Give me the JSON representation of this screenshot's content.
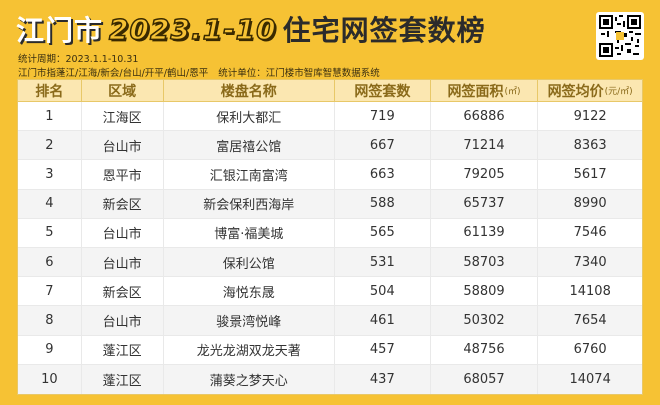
{
  "title": {
    "city": "江门市",
    "year": "2023.1-10",
    "main": "住宅网签套数榜"
  },
  "meta": {
    "period_label": "统计周期：",
    "period_value": "2023.1.1-10.31",
    "scope": "江门市指蓬江/江海/新会/台山/开平/鹤山/恩平",
    "unit_label": "统计单位：",
    "unit_value": "江门楼市智库智慧数据系统"
  },
  "table": {
    "headers": {
      "rank": "排名",
      "district": "区域",
      "project": "楼盘名称",
      "units": "网签套数",
      "area": "网签面积",
      "area_unit": "(㎡)",
      "price": "网签均价",
      "price_unit": "(元/㎡)"
    },
    "rows": [
      {
        "rank": "1",
        "district": "江海区",
        "project": "保利大都汇",
        "units": "719",
        "area": "66886",
        "price": "9122"
      },
      {
        "rank": "2",
        "district": "台山市",
        "project": "富居禧公馆",
        "units": "667",
        "area": "71214",
        "price": "8363"
      },
      {
        "rank": "3",
        "district": "恩平市",
        "project": "汇银江南富湾",
        "units": "663",
        "area": "79205",
        "price": "5617"
      },
      {
        "rank": "4",
        "district": "新会区",
        "project": "新会保利西海岸",
        "units": "588",
        "area": "65737",
        "price": "8990"
      },
      {
        "rank": "5",
        "district": "台山市",
        "project": "博富·福美城",
        "units": "565",
        "area": "61139",
        "price": "7546"
      },
      {
        "rank": "6",
        "district": "台山市",
        "project": "保利公馆",
        "units": "531",
        "area": "58703",
        "price": "7340"
      },
      {
        "rank": "7",
        "district": "新会区",
        "project": "海悦东晟",
        "units": "504",
        "area": "58809",
        "price": "14108"
      },
      {
        "rank": "8",
        "district": "台山市",
        "project": "骏景湾悦峰",
        "units": "461",
        "area": "50302",
        "price": "7654"
      },
      {
        "rank": "9",
        "district": "蓬江区",
        "project": "龙光龙湖双龙天著",
        "units": "457",
        "area": "48756",
        "price": "6760"
      },
      {
        "rank": "10",
        "district": "蓬江区",
        "project": "蒲葵之梦天心",
        "units": "437",
        "area": "68057",
        "price": "14074"
      }
    ]
  },
  "qr_icon": "qr-code-icon",
  "colors": {
    "background": "#f6c234",
    "header_bg": "#fbe7b1",
    "header_text": "#8a6a1a"
  }
}
